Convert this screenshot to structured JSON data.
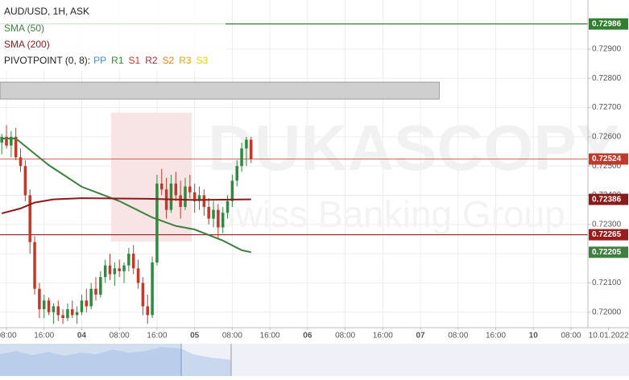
{
  "chart_data": {
    "type": "candlestick",
    "title": "AUD/USD, 1H, ASK",
    "watermark": [
      "DUKASCOPY",
      "Swiss Banking Group"
    ],
    "pivot_label": "PIVOTPOINT (0, 8):",
    "pivots": [
      {
        "name": "PP",
        "color": "#3d8fe0"
      },
      {
        "name": "R1",
        "color": "#2f8f2f"
      },
      {
        "name": "S1",
        "color": "#c0392b"
      },
      {
        "name": "R2",
        "color": "#b02a3a"
      },
      {
        "name": "S2",
        "color": "#e8841a"
      },
      {
        "name": "R3",
        "color": "#e0a800"
      },
      {
        "name": "S3",
        "color": "#e6d200"
      }
    ],
    "x": [
      -1,
      0,
      1,
      2,
      3,
      4,
      5,
      6,
      7,
      8,
      9,
      10,
      11,
      12,
      13,
      14,
      15,
      16,
      17,
      18,
      19,
      20,
      21,
      22,
      23,
      24,
      25,
      26,
      27,
      28,
      29,
      30,
      31,
      32,
      33,
      34,
      35,
      36,
      37,
      38,
      39,
      40,
      41,
      42,
      43,
      44,
      45,
      46,
      47,
      48,
      49,
      50,
      51,
      52
    ],
    "open": [
      0.7258,
      0.726,
      0.7257,
      0.726,
      0.7253,
      0.725,
      0.724,
      0.7224,
      0.7208,
      0.7201,
      0.7204,
      0.72,
      0.7202,
      0.7199,
      0.7198,
      0.7201,
      0.7199,
      0.72,
      0.7204,
      0.7202,
      0.7208,
      0.7206,
      0.7212,
      0.7216,
      0.7213,
      0.7215,
      0.7214,
      0.7216,
      0.722,
      0.7215,
      0.721,
      0.7202,
      0.7199,
      0.7217,
      0.7244,
      0.7242,
      0.7235,
      0.7244,
      0.724,
      0.7236,
      0.7243,
      0.7241,
      0.7238,
      0.724,
      0.7236,
      0.7232,
      0.7235,
      0.7229,
      0.7234,
      0.7238,
      0.7245,
      0.725,
      0.7256,
      0.7259
    ],
    "high": [
      0.7261,
      0.7264,
      0.7262,
      0.7263,
      0.7256,
      0.7252,
      0.7242,
      0.7226,
      0.721,
      0.7206,
      0.7205,
      0.7203,
      0.7204,
      0.7201,
      0.7203,
      0.7204,
      0.7202,
      0.7206,
      0.7208,
      0.721,
      0.7212,
      0.7214,
      0.7218,
      0.722,
      0.7217,
      0.7218,
      0.7217,
      0.7222,
      0.7223,
      0.7218,
      0.7212,
      0.7206,
      0.7219,
      0.7247,
      0.7249,
      0.7246,
      0.7247,
      0.7248,
      0.7245,
      0.7246,
      0.7247,
      0.7244,
      0.7243,
      0.7242,
      0.7239,
      0.7238,
      0.7237,
      0.7236,
      0.724,
      0.7247,
      0.7252,
      0.7258,
      0.726,
      0.726
    ],
    "low": [
      0.7254,
      0.7256,
      0.7253,
      0.7252,
      0.7248,
      0.7238,
      0.722,
      0.7206,
      0.7198,
      0.7198,
      0.7199,
      0.7196,
      0.7197,
      0.7196,
      0.7197,
      0.7198,
      0.7196,
      0.7199,
      0.72,
      0.7201,
      0.7204,
      0.7205,
      0.721,
      0.7211,
      0.7209,
      0.7212,
      0.721,
      0.7214,
      0.7213,
      0.7208,
      0.7199,
      0.7196,
      0.7198,
      0.7216,
      0.724,
      0.7232,
      0.7234,
      0.7238,
      0.7232,
      0.7235,
      0.7239,
      0.7234,
      0.7235,
      0.7233,
      0.723,
      0.7229,
      0.7225,
      0.7227,
      0.7232,
      0.7236,
      0.7243,
      0.7248,
      0.725,
      0.7251
    ],
    "close": [
      0.726,
      0.7257,
      0.726,
      0.7253,
      0.725,
      0.724,
      0.7224,
      0.7208,
      0.7201,
      0.7204,
      0.72,
      0.7202,
      0.7199,
      0.7198,
      0.7201,
      0.7199,
      0.72,
      0.7204,
      0.7202,
      0.7208,
      0.7206,
      0.7212,
      0.7216,
      0.7213,
      0.7215,
      0.7214,
      0.7216,
      0.722,
      0.7215,
      0.721,
      0.7202,
      0.7199,
      0.7217,
      0.7244,
      0.7242,
      0.7235,
      0.7244,
      0.724,
      0.7236,
      0.7243,
      0.7241,
      0.7238,
      0.724,
      0.7236,
      0.7232,
      0.7235,
      0.7229,
      0.7234,
      0.7238,
      0.7245,
      0.725,
      0.7256,
      0.7259,
      0.72524
    ],
    "up_color": "#2e8b3e",
    "down_color": "#c0392b",
    "series": [
      {
        "name": "SMA (50)",
        "color": "#3f7f3f",
        "x": [
          -1,
          2,
          5,
          9,
          16,
          24,
          31,
          36,
          40,
          46,
          50,
          52
        ],
        "values": [
          0.72594,
          0.72594,
          0.72555,
          0.72503,
          0.72429,
          0.7238,
          0.72324,
          0.72295,
          0.72283,
          0.72245,
          0.72212,
          0.72205
        ]
      },
      {
        "name": "SMA (200)",
        "color": "#8b1a1a",
        "x": [
          -1,
          3,
          6,
          10,
          16,
          30,
          40,
          52
        ],
        "values": [
          0.72338,
          0.72355,
          0.72375,
          0.72386,
          0.7239,
          0.72388,
          0.72384,
          0.72386
        ]
      }
    ],
    "levels": {
      "values": [
        0.72986,
        0.72524,
        0.72386,
        0.72265,
        0.72205
      ],
      "value_labels": [
        "0.72986",
        "0.72524",
        "0.72386",
        "0.72265",
        "0.72205"
      ],
      "colors": [
        "#2f7f2f",
        "#c0392b",
        "#8b1a1a",
        "#9b1c1c",
        "#3f7f3f"
      ],
      "lines": [
        true,
        true,
        false,
        true,
        false
      ]
    },
    "zone": {
      "x": [
        -2,
        92
      ],
      "y": [
        0.72729,
        0.72787
      ],
      "color": "#cfcfcf"
    },
    "xlim": [
      -1.37,
      123.6
    ],
    "ylim": [
      0.71947,
      0.73068
    ],
    "yticks": [
      {
        "value": 0.72,
        "label": "0.72000"
      },
      {
        "value": 0.721,
        "label": "0.72100"
      },
      {
        "value": 0.722,
        "label": "0.72200"
      },
      {
        "value": 0.723,
        "label": "0.72300"
      },
      {
        "value": 0.724,
        "label": "0.72400"
      },
      {
        "value": 0.725,
        "label": "0.72500"
      },
      {
        "value": 0.726,
        "label": "0.72600"
      },
      {
        "value": 0.727,
        "label": "0.72700"
      },
      {
        "value": 0.728,
        "label": "0.72800"
      },
      {
        "value": 0.729,
        "label": "0.72900"
      }
    ],
    "xticks": [
      {
        "value": 0,
        "label": "08:00"
      },
      {
        "value": 8,
        "label": "16:00"
      },
      {
        "value": 16,
        "label": "04"
      },
      {
        "value": 24,
        "label": "08:00"
      },
      {
        "value": 32,
        "label": "16:00"
      },
      {
        "value": 40,
        "label": "05"
      },
      {
        "value": 48,
        "label": "08:00"
      },
      {
        "value": 56,
        "label": "16:00"
      },
      {
        "value": 64,
        "label": "06"
      },
      {
        "value": 72,
        "label": "08:00"
      },
      {
        "value": 80,
        "label": "16:00"
      },
      {
        "value": 88,
        "label": "07"
      },
      {
        "value": 96,
        "label": "08:00"
      },
      {
        "value": 104,
        "label": "16:00"
      },
      {
        "value": 112,
        "label": "10"
      },
      {
        "value": 120,
        "label": "08:00"
      },
      {
        "value": 128,
        "label": "10.01.2022"
      }
    ],
    "grid": true
  }
}
